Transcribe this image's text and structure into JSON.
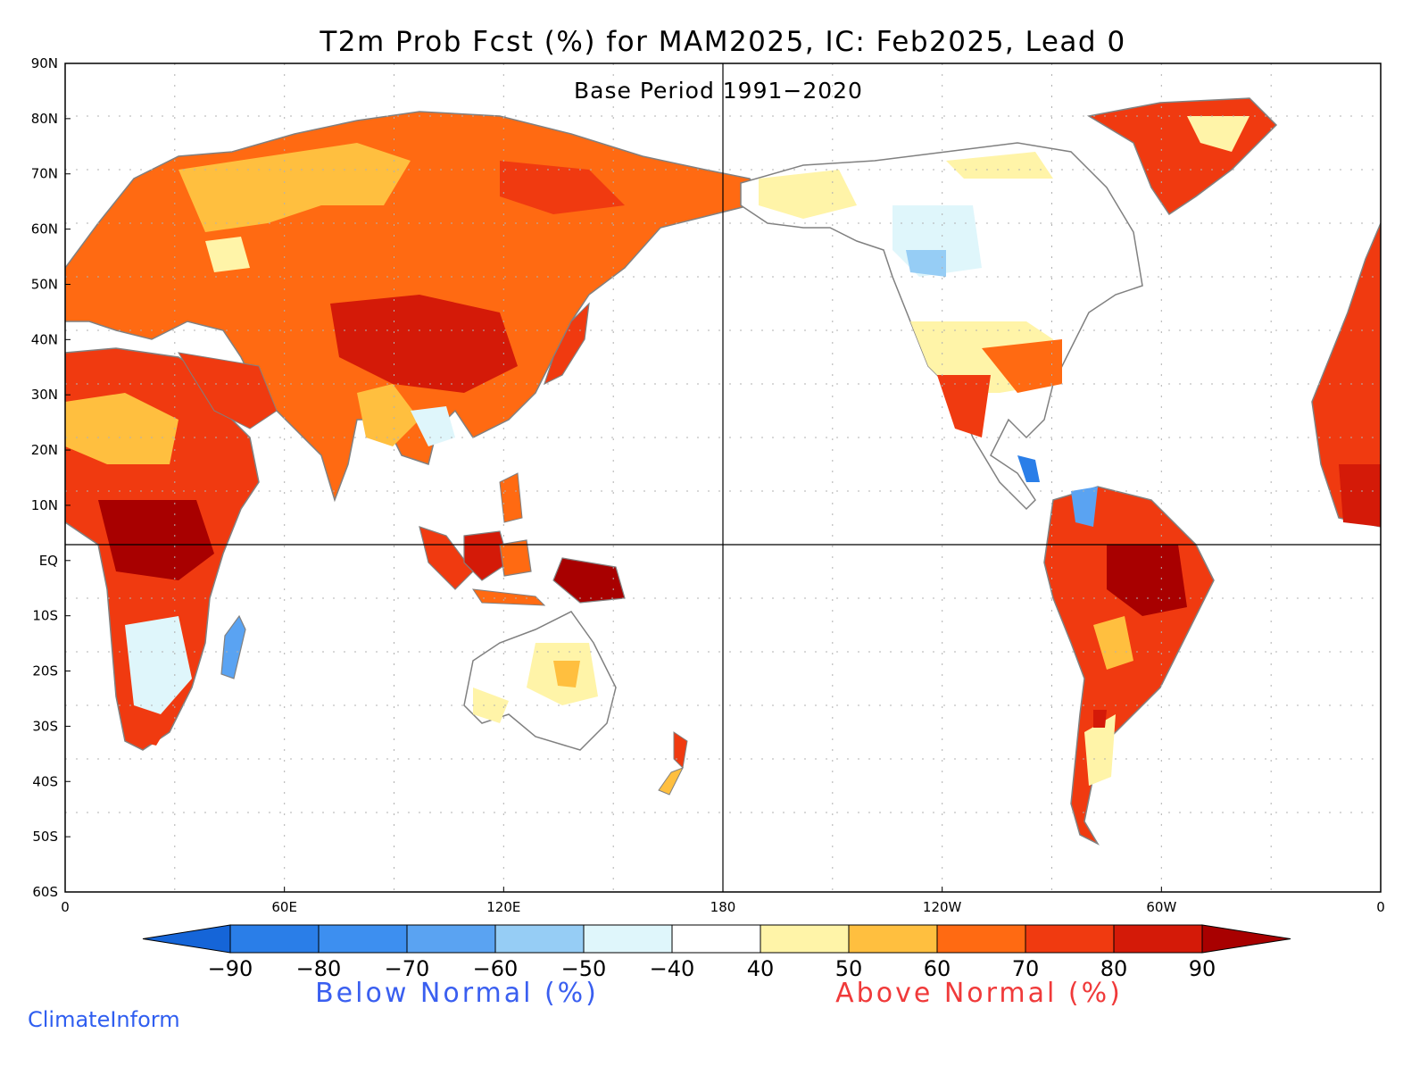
{
  "title": "T2m Prob Fcst (%) for MAM2025, IC: Feb2025, Lead 0",
  "subtitle": "Base Period 1991−2020",
  "lat_labels": [
    "90N",
    "80N",
    "70N",
    "60N",
    "50N",
    "40N",
    "30N",
    "20N",
    "10N",
    "EQ",
    "10S",
    "20S",
    "30S",
    "40S",
    "50S",
    "60S"
  ],
  "lon_labels": [
    "0",
    "60E",
    "120E",
    "180",
    "120W",
    "60W",
    "0"
  ],
  "colorbar": {
    "tick_labels": [
      "−90",
      "−80",
      "−70",
      "−60",
      "−50",
      "−40",
      "40",
      "50",
      "60",
      "70",
      "80",
      "90"
    ],
    "below_label": "Below Normal (%)",
    "above_label": "Above Normal (%)",
    "below_label_color": "#3a5ff0",
    "above_label_color": "#f03a3a",
    "colors": [
      "#1565d8",
      "#2a7ee8",
      "#3d8ff0",
      "#5aa3f2",
      "#96cdf5",
      "#dff6fb",
      "#ffffff",
      "#fff4a8",
      "#ffbf3f",
      "#ff6a12",
      "#f03a10",
      "#d41a08",
      "#a80000"
    ]
  },
  "credit": "ClimateInform",
  "credit_color": "#2f5ef0",
  "colors": {
    "ocean": "#ffffff",
    "land": "#ffffff",
    "coast": "#808080",
    "frame": "#000000",
    "grid": "#b0b0b0"
  }
}
